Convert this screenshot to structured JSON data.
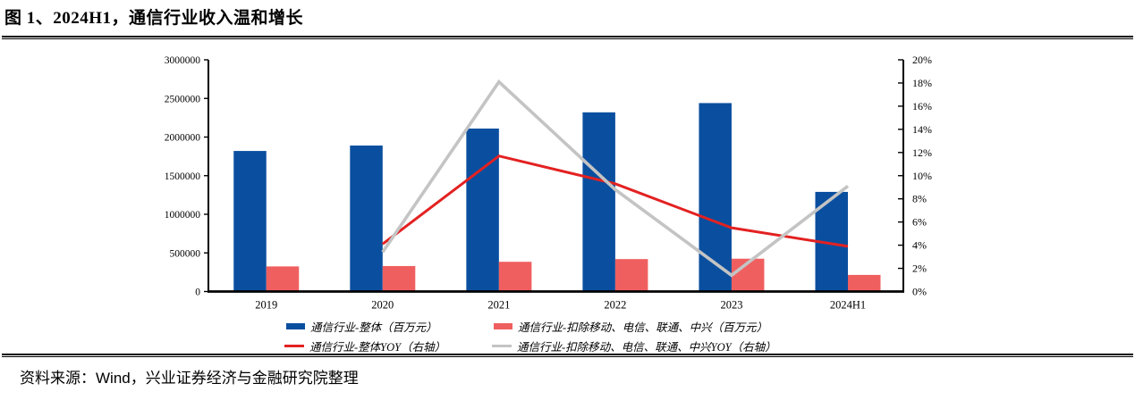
{
  "page": {
    "title": "图 1、2024H1，通信行业收入温和增长",
    "source": "资料来源：Wind，兴业证券经济与金融研究院整理"
  },
  "chart_data": {
    "type": "bar+line",
    "title": "2024H1，通信行业收入温和增长",
    "categories": [
      "2019",
      "2020",
      "2021",
      "2022",
      "2023",
      "2024H1"
    ],
    "bar_series": [
      {
        "name": "通信行业-整体（百万元）",
        "color": "#0A4F9F",
        "axis": "left",
        "values": [
          1820000,
          1890000,
          2110000,
          2320000,
          2440000,
          1290000
        ]
      },
      {
        "name": "通信行业-扣除移动、电信、联通、中兴（百万元）",
        "color": "#F05F5F",
        "axis": "left",
        "values": [
          325000,
          330000,
          385000,
          420000,
          425000,
          215000
        ]
      }
    ],
    "line_series": [
      {
        "name": "通信行业-整体YOY（右轴）",
        "color": "#E32121",
        "axis": "right",
        "values": [
          null,
          4.1,
          11.7,
          9.3,
          5.5,
          3.9
        ]
      },
      {
        "name": "通信行业-扣除移动、电信、联通、中兴YOY（右轴）",
        "color": "#C4C4C4",
        "axis": "right",
        "values": [
          null,
          3.4,
          18.1,
          8.8,
          1.4,
          9.1
        ]
      }
    ],
    "left_axis": {
      "min": 0,
      "max": 3000000,
      "step": 500000,
      "labels": [
        "0",
        "500000",
        "1000000",
        "1500000",
        "2000000",
        "2500000",
        "3000000"
      ]
    },
    "right_axis": {
      "min": 0,
      "max": 20,
      "step": 2,
      "labels": [
        "0%",
        "2%",
        "4%",
        "6%",
        "8%",
        "10%",
        "12%",
        "14%",
        "16%",
        "18%",
        "20%"
      ]
    },
    "grid": false,
    "legend_position": "bottom"
  }
}
